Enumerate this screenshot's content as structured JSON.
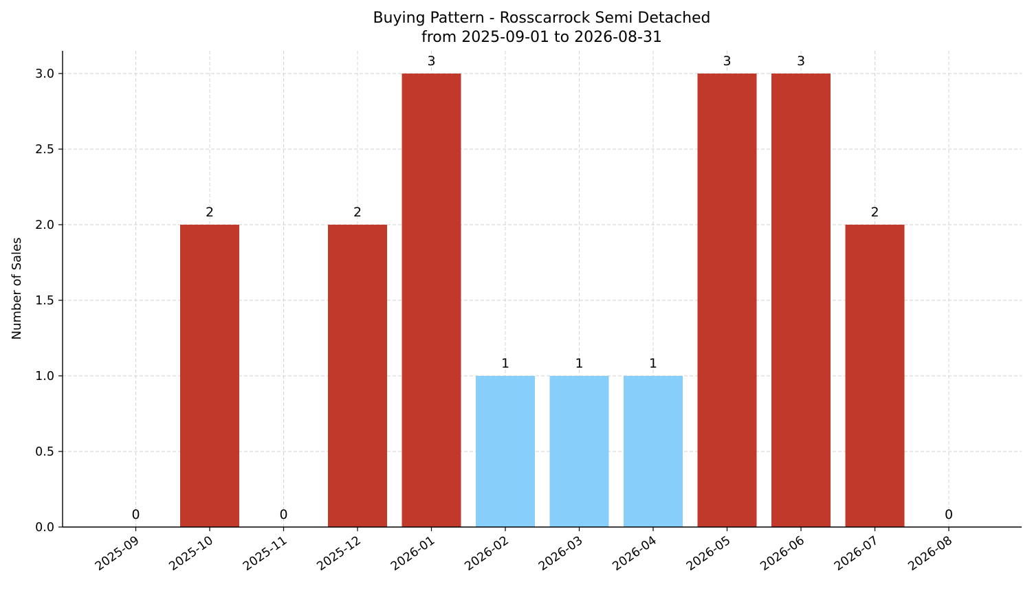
{
  "chart_data": {
    "type": "bar",
    "title": "Buying Pattern - Rosscarrock Semi Detached",
    "subtitle": "from 2025-09-01 to 2026-08-31",
    "xlabel": "",
    "ylabel": "Number of Sales",
    "ylim": [
      0,
      3.15
    ],
    "yticks": [
      0.0,
      0.5,
      1.0,
      1.5,
      2.0,
      2.5,
      3.0
    ],
    "ytick_labels": [
      "0.0",
      "0.5",
      "1.0",
      "1.5",
      "2.0",
      "2.5",
      "3.0"
    ],
    "grid": true,
    "legend": "none",
    "categories": [
      "2025-09",
      "2025-10",
      "2025-11",
      "2025-12",
      "2026-01",
      "2026-02",
      "2026-03",
      "2026-04",
      "2026-05",
      "2026-06",
      "2026-07",
      "2026-08"
    ],
    "values": [
      0,
      2,
      0,
      2,
      3,
      1,
      1,
      1,
      3,
      3,
      2,
      0
    ],
    "value_labels": [
      "0",
      "2",
      "0",
      "2",
      "3",
      "1",
      "1",
      "1",
      "3",
      "3",
      "2",
      "0"
    ],
    "bar_colors": [
      "#c0392b",
      "#c0392b",
      "#c0392b",
      "#c0392b",
      "#c0392b",
      "#87cefa",
      "#87cefa",
      "#87cefa",
      "#c0392b",
      "#c0392b",
      "#c0392b",
      "#c0392b"
    ],
    "colors": {
      "high": "#c0392b",
      "low": "#87cefa",
      "grid": "#d0d0d0",
      "axis": "#000000"
    }
  }
}
